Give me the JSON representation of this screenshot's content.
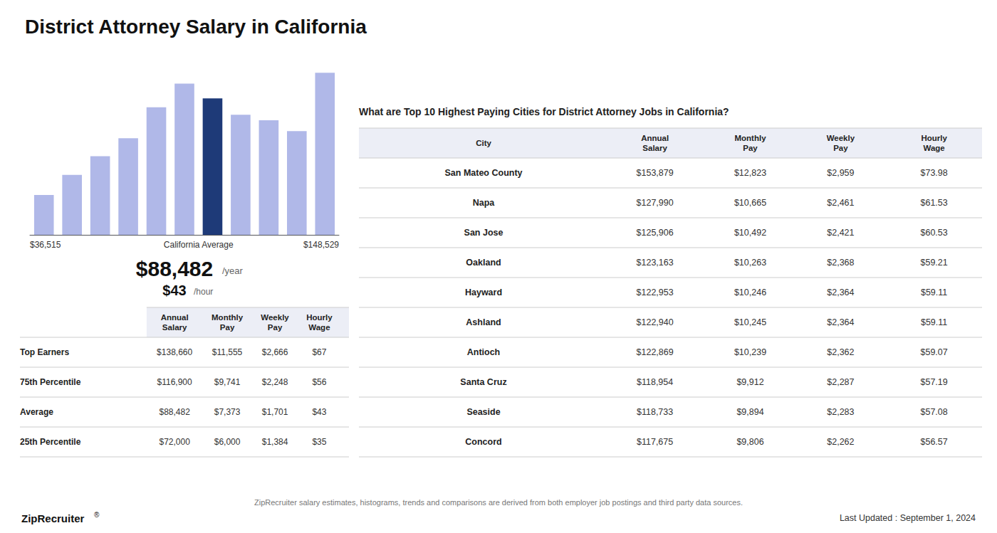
{
  "chart_data": {
    "type": "bar",
    "title": "District Attorney Salary in California",
    "categories": [
      null,
      null,
      null,
      null,
      null,
      null,
      null,
      null,
      null,
      null,
      null
    ],
    "values": [
      36515,
      55000,
      72000,
      88482,
      116900,
      138660,
      125000,
      110000,
      105000,
      95000,
      148529
    ],
    "colors": [
      "#b0b8e8",
      "#b0b8e8",
      "#b0b8e8",
      "#b0b8e8",
      "#b0b8e8",
      "#b0b8e8",
      "#1e3a78",
      "#b0b8e8",
      "#b0b8e8",
      "#b0b8e8",
      "#b0b8e8"
    ],
    "ylim": [
      0,
      150000
    ],
    "yticks": [
      0,
      50000,
      100000,
      150000
    ],
    "grid": false,
    "tick_labels": false,
    "annotations": {
      "left_label": "$36,515",
      "right_label": "$148,529",
      "avg_label": "California Average",
      "avg_salary": "$88,482",
      "avg_per_year": "/year",
      "avg_hourly": "$43",
      "avg_per_hour": "/hour",
      "footnote": "ZipRecruiter salary estimates, histograms, trends and comparisons are derived from both employer job postings and third party data sources.",
      "brand": "ZipRecruiter",
      "brand_mark": "®",
      "last_updated": "Last Updated : September 1, 2024"
    },
    "tables": [
      {
        "headers": [
          "Annual\nSalary",
          "Monthly\nPay",
          "Weekly\nPay",
          "Hourly\nWage"
        ],
        "rows": [
          [
            "Top Earners",
            "$138,660",
            "$11,555",
            "$2,666",
            "$67"
          ],
          [
            "75th Percentile",
            "$116,900",
            "$9,741",
            "$2,248",
            "$56"
          ],
          [
            "Average",
            "$88,482",
            "$7,373",
            "$1,701",
            "$43"
          ],
          [
            "25th Percentile",
            "$72,000",
            "$6,000",
            "$1,384",
            "$35"
          ]
        ]
      },
      {
        "title": "What are Top 10 Highest Paying Cities for District Attorney Jobs in California?",
        "headers": [
          "City",
          "Annual\nSalary",
          "Monthly\nPay",
          "Weekly\nPay",
          "Hourly\nWage"
        ],
        "rows": [
          [
            "San Mateo County",
            "$153,879",
            "$12,823",
            "$2,959",
            "$73.98"
          ],
          [
            "Napa",
            "$127,990",
            "$10,665",
            "$2,461",
            "$61.53"
          ],
          [
            "San Jose",
            "$125,906",
            "$10,492",
            "$2,421",
            "$60.53"
          ],
          [
            "Oakland",
            "$123,163",
            "$10,263",
            "$2,368",
            "$59.21"
          ],
          [
            "Hayward",
            "$122,953",
            "$10,246",
            "$2,364",
            "$59.11"
          ],
          [
            "Ashland",
            "$122,940",
            "$10,245",
            "$2,364",
            "$59.11"
          ],
          [
            "Antioch",
            "$122,869",
            "$10,239",
            "$2,362",
            "$59.07"
          ],
          [
            "Santa Cruz",
            "$118,954",
            "$9,912",
            "$2,287",
            "$57.19"
          ],
          [
            "Seaside",
            "$118,733",
            "$9,894",
            "$2,283",
            "$57.08"
          ],
          [
            "Concord",
            "$117,675",
            "$9,806",
            "$2,262",
            "$56.57"
          ]
        ]
      }
    ]
  }
}
